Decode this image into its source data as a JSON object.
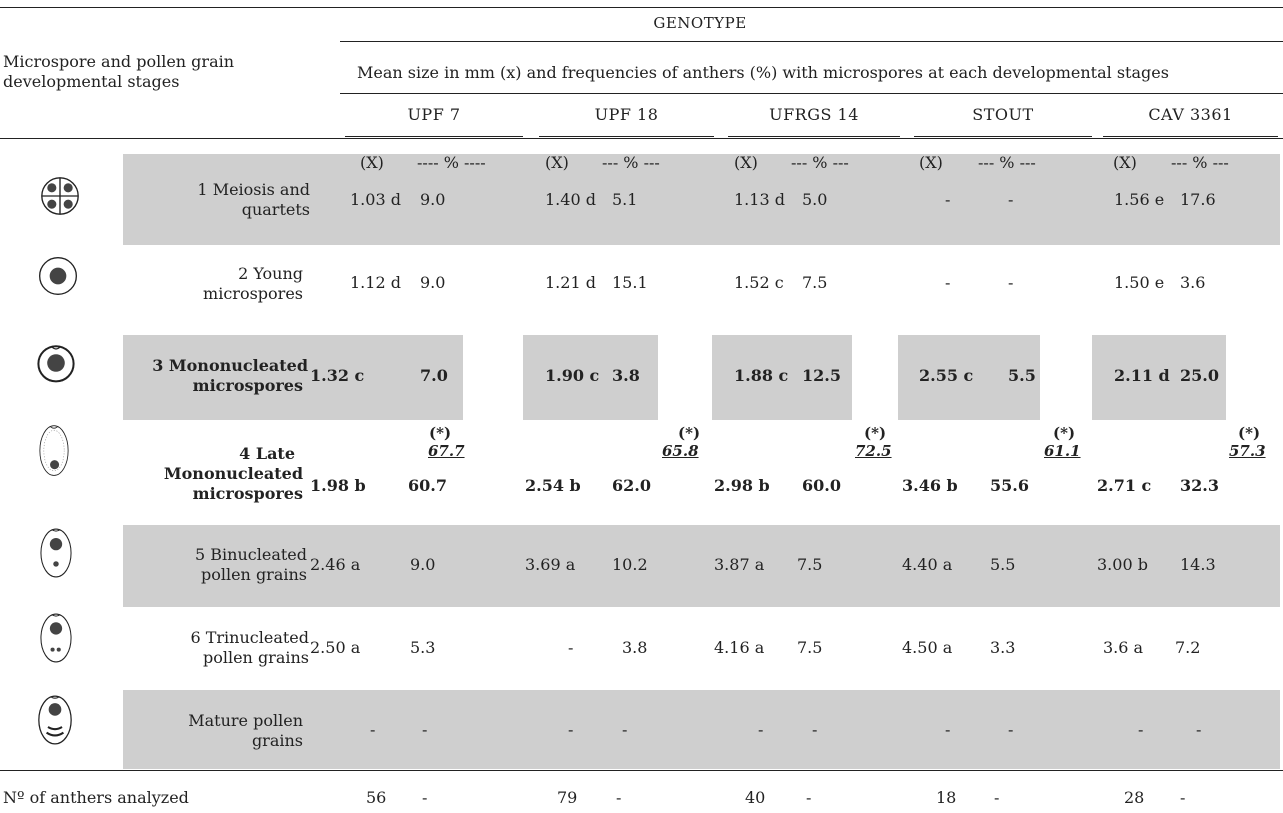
{
  "header": {
    "genotype_label": "GENOTYPE",
    "row_header": "Microspore and pollen grain developmental stages",
    "row_header_line1": "Microspore and pollen grain",
    "row_header_line2": "developmental stages",
    "subheader": "Mean size in mm (x) and frequencies of anthers (%) with microspores at each developmental stages",
    "genotypes": [
      "UPF 7",
      "UPF 18",
      "UFRGS 14",
      "STOUT",
      "CAV 3361"
    ],
    "col_x": "(X)",
    "col_pct": [
      "---- % ----",
      "--- % ---",
      "--- % ---",
      "--- % ---",
      "--- % ---"
    ]
  },
  "stages": [
    {
      "line1": "1 Meiosis and",
      "line2": "quartets",
      "cells": [
        [
          "1.03 d",
          "9.0"
        ],
        [
          "1.40 d",
          "5.1"
        ],
        [
          "1.13 d",
          "5.0"
        ],
        [
          "-",
          "-"
        ],
        [
          "1.56 e",
          "17.6"
        ]
      ]
    },
    {
      "line1": "2 Young",
      "line2": "microspores",
      "cells": [
        [
          "1.12 d",
          "9.0"
        ],
        [
          "1.21 d",
          "15.1"
        ],
        [
          "1.52 c",
          "7.5"
        ],
        [
          "-",
          "-"
        ],
        [
          "1.50 e",
          "3.6"
        ]
      ]
    },
    {
      "line1": "3 Mononucleated",
      "line2": "microspores",
      "cells": [
        [
          "1.32 c",
          "7.0"
        ],
        [
          "1.90 c",
          "3.8"
        ],
        [
          "1.88 c",
          "12.5"
        ],
        [
          "2.55 c",
          "5.5"
        ],
        [
          "2.11 d",
          "25.0"
        ]
      ]
    },
    {
      "line1": "4 Late",
      "line2": "Mononucleated",
      "line3": "microspores",
      "cells": [
        [
          "1.98 b",
          "60.7"
        ],
        [
          "2.54 b",
          "62.0"
        ],
        [
          "2.98 b",
          "60.0"
        ],
        [
          "3.46 b",
          "55.6"
        ],
        [
          "2.71 c",
          "32.3"
        ]
      ]
    },
    {
      "line1": "5 Binucleated",
      "line2": "pollen grains",
      "cells": [
        [
          "2.46 a",
          "9.0"
        ],
        [
          "3.69 a",
          "10.2"
        ],
        [
          "3.87 a",
          "7.5"
        ],
        [
          "4.40 a",
          "5.5"
        ],
        [
          "3.00 b",
          "14.3"
        ]
      ]
    },
    {
      "line1": "6 Trinucleated",
      "line2": "pollen grains",
      "cells": [
        [
          "2.50 a",
          "5.3"
        ],
        [
          "-",
          "3.8"
        ],
        [
          "4.16 a",
          "7.5"
        ],
        [
          "4.50 a",
          "3.3"
        ],
        [
          "3.6 a",
          "7.2"
        ]
      ]
    },
    {
      "line1": "Mature pollen",
      "line2": "grains",
      "cells": [
        [
          "-",
          "-"
        ],
        [
          "-",
          "-"
        ],
        [
          "-",
          "-"
        ],
        [
          "-",
          "-"
        ],
        [
          "-",
          "-"
        ]
      ]
    }
  ],
  "star_label": "(*)",
  "totals_3_4": [
    "67.7",
    "65.8",
    "72.5",
    "61.1",
    "57.3"
  ],
  "footer": {
    "label": "Nº of anthers analyzed",
    "counts": [
      "56",
      "79",
      "40",
      "18",
      "28"
    ],
    "dash": "-"
  },
  "icons": [
    "quartet-icon",
    "young-microspore-icon",
    "mononucleated-microspore-icon",
    "late-mononucleated-icon",
    "binucleated-pollen-icon",
    "trinucleated-pollen-icon",
    "mature-pollen-icon"
  ]
}
